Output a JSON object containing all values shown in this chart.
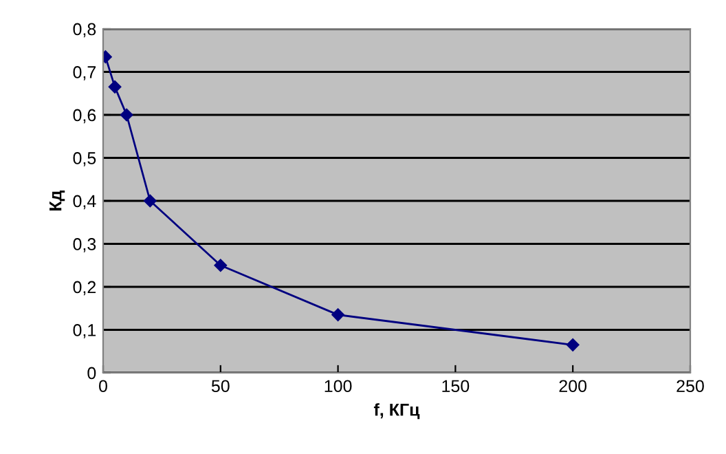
{
  "chart_data": {
    "type": "line",
    "xlabel": "f, КГц",
    "ylabel": "Кд",
    "x": [
      1,
      5,
      10,
      20,
      50,
      100,
      200
    ],
    "series": [
      {
        "color": "#000080",
        "values": [
          0.735,
          0.665,
          0.6,
          0.4,
          0.25,
          0.135,
          0.065
        ]
      }
    ],
    "xlim": [
      0,
      250
    ],
    "xticks": [
      0,
      50,
      100,
      150,
      200,
      250
    ],
    "ylim": [
      0,
      0.8
    ],
    "yticks": [
      {
        "value": 0,
        "label": "0"
      },
      {
        "value": 0.1,
        "label": "0,1"
      },
      {
        "value": 0.2,
        "label": "0,2"
      },
      {
        "value": 0.3,
        "label": "0,3"
      },
      {
        "value": 0.4,
        "label": "0,4"
      },
      {
        "value": 0.5,
        "label": "0,5"
      },
      {
        "value": 0.6,
        "label": "0,6"
      },
      {
        "value": 0.7,
        "label": "0,7"
      },
      {
        "value": 0.8,
        "label": "0,8"
      }
    ],
    "grid": "y",
    "marker": "diamond",
    "line_style": "solid"
  }
}
